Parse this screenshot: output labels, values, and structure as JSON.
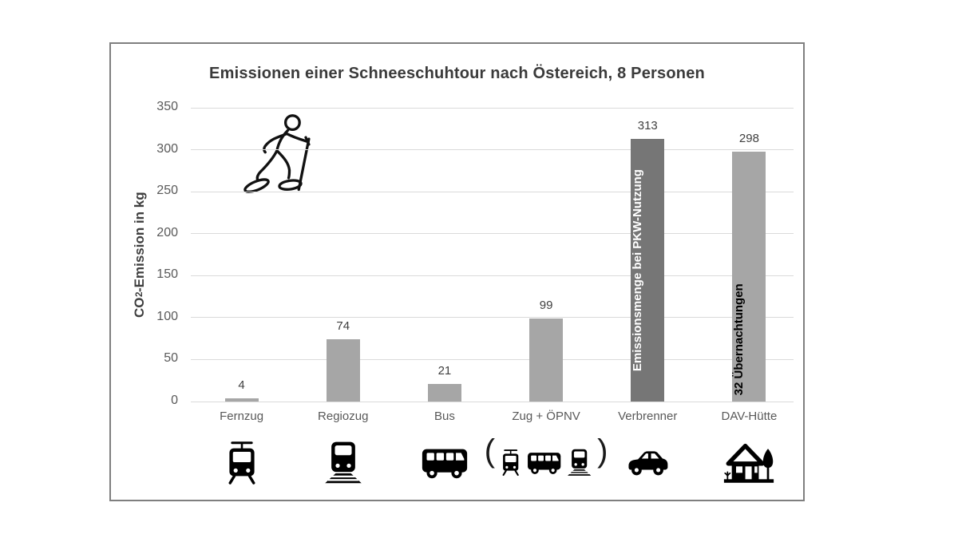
{
  "chart": {
    "title": "Emissionen einer Schneeschuhtour nach Östereich, 8 Personen",
    "y_axis": {
      "prefix": "CO",
      "sub": "2",
      "suffix": "-Emission in kg"
    }
  },
  "chart_data": {
    "type": "bar",
    "title": "Emissionen einer Schneeschuhtour nach Östereich, 8 Personen",
    "xlabel": "",
    "ylabel": "CO2-Emission in kg",
    "ylim": [
      0,
      350
    ],
    "yticks": [
      0,
      50,
      100,
      150,
      200,
      250,
      300,
      350
    ],
    "grid": true,
    "legend": false,
    "categories": [
      "Fernzug",
      "Regiozug",
      "Bus",
      "Zug + ÖPNV",
      "Verbrenner",
      "DAV-Hütte"
    ],
    "values": [
      4,
      74,
      21,
      99,
      313,
      298
    ],
    "bars": [
      {
        "label": "Fernzug",
        "value": 4,
        "color": "#a6a6a6",
        "icon": "tram-icon"
      },
      {
        "label": "Regiozug",
        "value": 74,
        "color": "#a6a6a6",
        "icon": "train-icon"
      },
      {
        "label": "Bus",
        "value": 21,
        "color": "#a6a6a6",
        "icon": "bus-icon"
      },
      {
        "label": "Zug + ÖPNV",
        "value": 99,
        "color": "#a6a6a6",
        "icon": "tram-bus-train-icons",
        "icon_wrap_open": "(",
        "icon_wrap_close": ")"
      },
      {
        "label": "Verbrenner",
        "value": 313,
        "color": "#767676",
        "icon": "car-icon",
        "bar_text": "Emissionsmenge bei PKW-Nutzung",
        "bar_text_color": "#ffffff",
        "bar_text_align": "center"
      },
      {
        "label": "DAV-Hütte",
        "value": 298,
        "color": "#a6a6a6",
        "icon": "hut-icon",
        "bar_text": "32 Übernachtungen",
        "bar_text_color": "#000000",
        "bar_text_align": "bottom"
      }
    ],
    "annotations": [
      "snowshoe-hiker-line-drawing"
    ]
  },
  "colors": {
    "bar_default": "#a6a6a6",
    "bar_highlight": "#767676",
    "gridline": "#dadada",
    "frame_border": "#7f7f7f",
    "title_text": "#3a3a3a",
    "tick_text": "#595959",
    "value_text": "#404040",
    "background": "#ffffff"
  }
}
